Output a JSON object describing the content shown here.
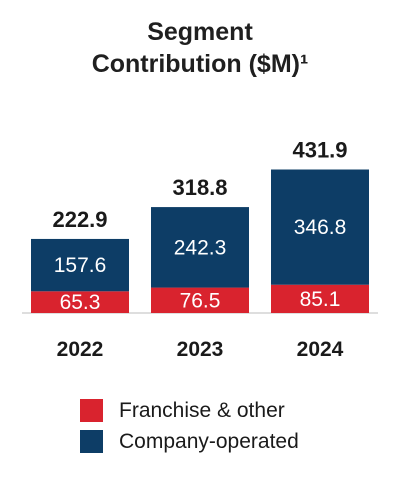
{
  "chart_data": {
    "type": "bar",
    "stacked": true,
    "title_line1": "Segment",
    "title_line2": "Contribution ($M)¹",
    "categories": [
      "2022",
      "2023",
      "2024"
    ],
    "series": [
      {
        "name": "Franchise & other",
        "color": "#d9232e",
        "values": [
          65.3,
          76.5,
          85.1
        ]
      },
      {
        "name": "Company-operated",
        "color": "#0d3d66",
        "values": [
          157.6,
          242.3,
          346.8
        ]
      }
    ],
    "totals": [
      "222.9",
      "318.8",
      "431.9"
    ],
    "ylim": [
      0,
      450
    ],
    "legend_position": "bottom",
    "grid": false
  }
}
